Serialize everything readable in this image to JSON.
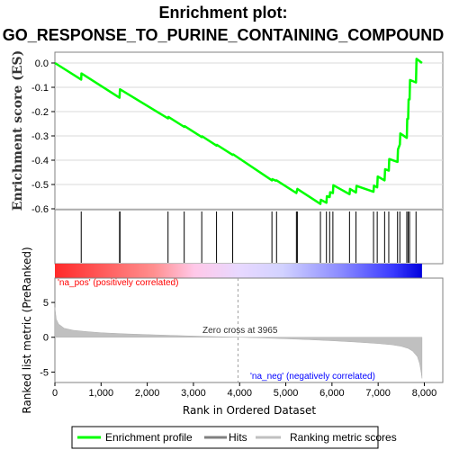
{
  "chart_data": {
    "type": "line",
    "title_line1": "Enrichment plot:",
    "title_line2": "GO_RESPONSE_TO_PURINE_CONTAINING_COMPOUND",
    "es_panel": {
      "ylabel": "Enrichment score (ES)",
      "ylim": [
        -0.6,
        0.0
      ],
      "yticks": [
        "0.0",
        "-0.1",
        "-0.2",
        "-0.3",
        "-0.4",
        "-0.5",
        "-0.6"
      ],
      "ytick_values": [
        0.0,
        -0.1,
        -0.2,
        -0.3,
        -0.4,
        -0.5,
        -0.6
      ],
      "series": [
        {
          "name": "Enrichment profile",
          "color": "#00ff00",
          "x": [
            0,
            570,
            575,
            1400,
            1410,
            2450,
            2460,
            2800,
            2810,
            3180,
            3190,
            3500,
            3510,
            3850,
            3860,
            4700,
            4710,
            4780,
            4800,
            5230,
            5250,
            5750,
            5760,
            5880,
            5890,
            5950,
            5960,
            6020,
            6030,
            6380,
            6390,
            6520,
            6530,
            6900,
            6910,
            6980,
            6990,
            7140,
            7150,
            7230,
            7240,
            7420,
            7430,
            7470,
            7480,
            7620,
            7630,
            7650,
            7660,
            7680,
            7690,
            7820,
            7830,
            7950
          ],
          "y": [
            0.0,
            -0.068,
            -0.043,
            -0.143,
            -0.108,
            -0.228,
            -0.222,
            -0.263,
            -0.26,
            -0.305,
            -0.302,
            -0.34,
            -0.337,
            -0.378,
            -0.376,
            -0.483,
            -0.478,
            -0.484,
            -0.483,
            -0.535,
            -0.518,
            -0.58,
            -0.563,
            -0.575,
            -0.548,
            -0.552,
            -0.532,
            -0.535,
            -0.503,
            -0.54,
            -0.518,
            -0.533,
            -0.506,
            -0.53,
            -0.505,
            -0.512,
            -0.467,
            -0.483,
            -0.437,
            -0.443,
            -0.395,
            -0.407,
            -0.356,
            -0.335,
            -0.29,
            -0.308,
            -0.23,
            -0.23,
            -0.15,
            -0.15,
            -0.07,
            -0.08,
            0.017,
            0.0
          ]
        }
      ]
    },
    "hits_panel": {
      "legend_name": "Hits",
      "hit_positions": [
        570,
        1400,
        1410,
        2450,
        2800,
        3180,
        3500,
        3850,
        4700,
        4800,
        5230,
        5250,
        5750,
        5880,
        5950,
        6020,
        6380,
        6520,
        6900,
        6980,
        7140,
        7230,
        7420,
        7470,
        7620,
        7650,
        7680,
        7820
      ]
    },
    "gradient_bar": {
      "xlim": [
        0,
        7950
      ],
      "pos_color": "#ff0000",
      "neg_color": "#0000ff",
      "zero_cross": 3965
    },
    "rank_panel": {
      "ylabel": "Ranked list metric (PreRanked)",
      "xlabel": "Rank in Ordered Dataset",
      "ylim": [
        -6.5,
        8.5
      ],
      "yticks": [
        "5",
        "0",
        "-5"
      ],
      "ytick_values": [
        5,
        0,
        -5
      ],
      "xlim": [
        0,
        8400
      ],
      "xticks": [
        "0",
        "1,000",
        "2,000",
        "3,000",
        "4,000",
        "5,000",
        "6,000",
        "7,000",
        "8,000"
      ],
      "xtick_values": [
        0,
        1000,
        2000,
        3000,
        4000,
        5000,
        6000,
        7000,
        8000
      ],
      "zero_cross_label": "Zero cross at 3965",
      "pos_label": "'na_pos' (positively correlated)",
      "neg_label": "'na_neg' (negatively correlated)",
      "pos_label_color": "#ff0000",
      "neg_label_color": "#0000ff",
      "curve_x": [
        0,
        30,
        80,
        200,
        400,
        700,
        1000,
        1500,
        2000,
        2500,
        3000,
        3500,
        3965,
        4500,
        5000,
        5500,
        6000,
        6500,
        7000,
        7300,
        7500,
        7650,
        7750,
        7850,
        7900,
        7930,
        7950
      ],
      "curve_y": [
        4.3,
        2.6,
        1.9,
        1.3,
        1.0,
        0.8,
        0.65,
        0.5,
        0.38,
        0.27,
        0.17,
        0.08,
        0.0,
        -0.1,
        -0.22,
        -0.35,
        -0.5,
        -0.68,
        -0.9,
        -1.08,
        -1.3,
        -1.6,
        -2.0,
        -2.8,
        -3.8,
        -5.0,
        -5.9
      ]
    },
    "legend": [
      {
        "label": "Enrichment profile",
        "color": "#00ff00"
      },
      {
        "label": "Hits",
        "color": "#808080"
      },
      {
        "label": "Ranking metric scores",
        "color": "#c0c0c0"
      }
    ]
  }
}
